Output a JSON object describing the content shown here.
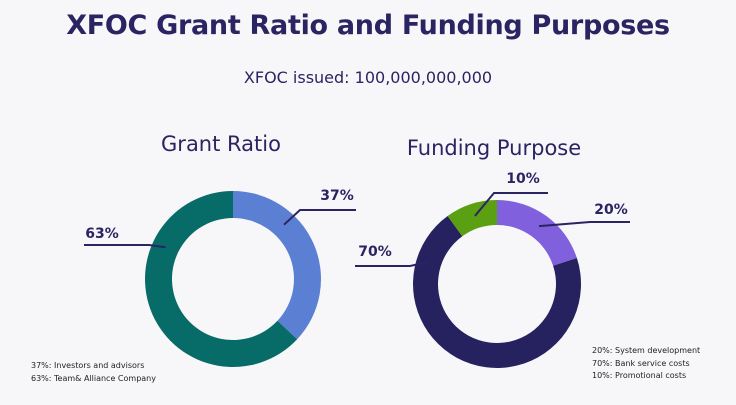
{
  "title": "XFOC Grant Ratio and Funding Purposes",
  "subtitle": "XFOC issued: 100,000,000,000",
  "chart_data": [
    {
      "type": "pie",
      "title": "Grant Ratio",
      "slices": [
        {
          "label": "37%",
          "value": 37,
          "color": "#5b80d3",
          "legend": "37%: Investors and advisors"
        },
        {
          "label": "63%",
          "value": 63,
          "color": "#076b67",
          "legend": "63%: Team& Alliance Company"
        }
      ],
      "donut": true
    },
    {
      "type": "pie",
      "title": "Funding Purpose",
      "slices": [
        {
          "label": "20%",
          "value": 20,
          "color": "#8060dc",
          "legend": "20%: System development"
        },
        {
          "label": "70%",
          "value": 70,
          "color": "#25225f",
          "legend": "70%: Bank service costs"
        },
        {
          "label": "10%",
          "value": 10,
          "color": "#5b9f12",
          "legend": "10%: Promotional costs"
        }
      ],
      "donut": true
    }
  ]
}
